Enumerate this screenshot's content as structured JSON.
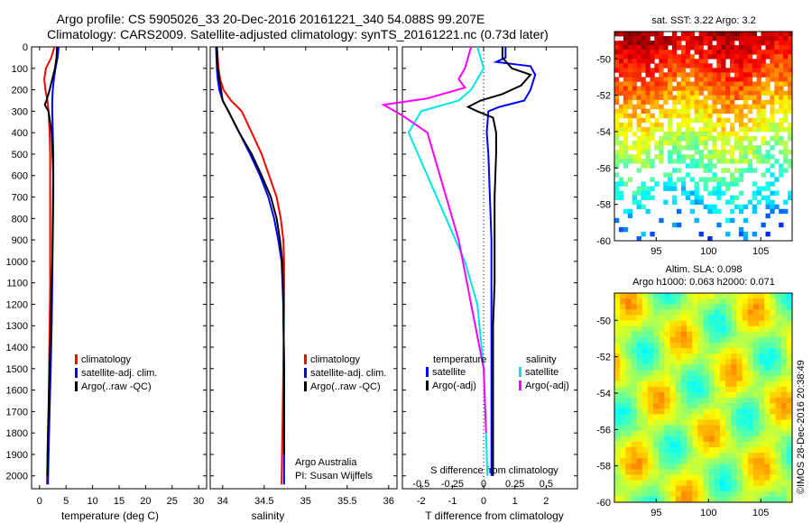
{
  "titles": {
    "line1": "Argo profile: CS 5905026_33 20-Dec-2016 20161221_340 54.088S 99.207E",
    "line2": "Climatology: CARS2009. Satellite-adjusted climatology: synTS_20161221.nc (0.73d later)"
  },
  "colors": {
    "climatology": "#ff0000",
    "satellite": "#0000ff",
    "argo": "#000000",
    "salinity_satellite": "#00e6e6",
    "salinity_argo": "#ff00ff"
  },
  "depth_ticks": [
    "0",
    "100",
    "200",
    "300",
    "400",
    "500",
    "600",
    "700",
    "800",
    "900",
    "1000",
    "1100",
    "1200",
    "1300",
    "1400",
    "1500",
    "1600",
    "1700",
    "1800",
    "1900",
    "2000"
  ],
  "chart_data": [
    {
      "id": "temperature",
      "type": "line",
      "xlabel": "temperature (deg C)",
      "ylabel": "",
      "xlim": [
        -1.5,
        31.5
      ],
      "ylim": [
        2060,
        0
      ],
      "xticks": [
        "0",
        "5",
        "10",
        "15",
        "20",
        "25",
        "30"
      ],
      "legend": [
        "climatology",
        "satellite-adj. clim.",
        "Argo(..raw -QC)"
      ],
      "series": [
        {
          "name": "climatology",
          "x": [
            2.8,
            2.2,
            1.2,
            0.9,
            1.1,
            1.5,
            1.7,
            1.9,
            2.0,
            2.0,
            2.0,
            2.0,
            1.9,
            1.8,
            1.7,
            1.5,
            1.4
          ],
          "y": [
            0,
            50,
            100,
            150,
            200,
            250,
            300,
            400,
            500,
            700,
            900,
            1100,
            1300,
            1500,
            1700,
            1900,
            2040
          ]
        },
        {
          "name": "satellite-adj. clim.",
          "x": [
            3.6,
            3.4,
            3.0,
            2.7,
            2.5,
            2.4,
            2.4,
            2.5,
            2.6,
            2.6,
            2.5,
            2.4,
            2.3,
            2.1,
            1.9,
            1.7,
            1.6
          ],
          "y": [
            0,
            50,
            100,
            150,
            200,
            250,
            300,
            400,
            500,
            700,
            900,
            1100,
            1300,
            1500,
            1700,
            1900,
            2040
          ]
        },
        {
          "name": "Argo(..raw -QC)",
          "x": [
            3.3,
            3.2,
            2.9,
            2.4,
            1.9,
            1.3,
            1.0,
            1.7,
            2.3,
            2.6,
            2.5,
            2.4,
            2.2,
            2.0,
            1.8,
            1.6,
            1.5
          ],
          "y": [
            0,
            50,
            100,
            150,
            200,
            250,
            270,
            300,
            400,
            600,
            800,
            1000,
            1200,
            1400,
            1600,
            1800,
            2000
          ]
        }
      ]
    },
    {
      "id": "salinity",
      "type": "line",
      "xlabel": "salinity",
      "ylabel": "",
      "xlim": [
        33.85,
        36.1
      ],
      "ylim": [
        2060,
        0
      ],
      "xticks": [
        "34",
        "34.5",
        "35",
        "35.5",
        "36"
      ],
      "legend": [
        "climatology",
        "satellite-adj. clim.",
        "Argo(..raw -QC)"
      ],
      "annotations": [
        "Argo Australia",
        "PI: Susan Wijffels"
      ],
      "series": [
        {
          "name": "climatology",
          "x": [
            33.93,
            33.95,
            33.97,
            34.01,
            34.1,
            34.23,
            34.35,
            34.47,
            34.56,
            34.65,
            34.7,
            34.73,
            34.74,
            34.74,
            34.73,
            34.72,
            34.71
          ],
          "y": [
            0,
            100,
            150,
            200,
            250,
            300,
            400,
            500,
            600,
            700,
            800,
            900,
            1000,
            1200,
            1500,
            1800,
            2040
          ]
        },
        {
          "name": "satellite-adj. clim.",
          "x": [
            33.92,
            33.93,
            33.94,
            33.96,
            34.0,
            34.07,
            34.2,
            34.33,
            34.45,
            34.55,
            34.62,
            34.67,
            34.71,
            34.73,
            34.74,
            34.74,
            34.74
          ],
          "y": [
            0,
            100,
            150,
            200,
            250,
            300,
            400,
            500,
            600,
            700,
            800,
            900,
            1000,
            1200,
            1500,
            1800,
            2040
          ]
        },
        {
          "name": "Argo(..raw -QC)",
          "x": [
            33.93,
            33.94,
            33.96,
            33.98,
            34.0,
            34.07,
            34.2,
            34.35,
            34.47,
            34.58,
            34.65,
            34.69,
            34.72,
            34.73,
            34.74,
            34.74
          ],
          "y": [
            0,
            100,
            150,
            200,
            250,
            300,
            400,
            500,
            600,
            700,
            800,
            900,
            1000,
            1200,
            1500,
            1900
          ]
        }
      ]
    },
    {
      "id": "difference",
      "type": "line",
      "xlabel": "T difference from climatology",
      "top_label": "S difference from climatology",
      "ylabel": "",
      "xlim": [
        -2.6,
        3.0
      ],
      "ylim": [
        2060,
        0
      ],
      "xticks": [
        "-2",
        "-1",
        "0",
        "1",
        "2"
      ],
      "s_xticks": [
        "-0.5",
        "-0.25",
        "0",
        "0.25",
        "0.5"
      ],
      "legend": [
        "temperature",
        "satellite",
        "Argo(-adj)",
        "salinity",
        "satellite",
        "Argo(-adj)"
      ],
      "series": [
        {
          "name": "satellite",
          "x": [
            0.7,
            0.7,
            0.4,
            1.5,
            1.65,
            1.5,
            1.3,
            0.5,
            0.15,
            0.1,
            0.15,
            0.2,
            0.25,
            0.25,
            0.25,
            0.25,
            0.25,
            0.25
          ],
          "y": [
            0,
            50,
            70,
            90,
            130,
            200,
            250,
            280,
            300,
            400,
            500,
            700,
            900,
            1100,
            1300,
            1500,
            1800,
            2000
          ]
        },
        {
          "name": "Argo(-adj)",
          "x": [
            0.6,
            0.6,
            0.9,
            1.5,
            1.2,
            0.6,
            -0.1,
            -0.5,
            -0.2,
            0.3,
            0.4,
            0.4,
            0.35,
            0.35,
            0.35,
            0.3,
            0.3,
            0.3,
            0.3
          ],
          "y": [
            0,
            50,
            100,
            130,
            180,
            220,
            250,
            280,
            300,
            330,
            400,
            500,
            700,
            900,
            1100,
            1300,
            1500,
            1800,
            2000
          ]
        },
        {
          "name": "satellite",
          "x": [
            -0.05,
            0.0,
            -0.05,
            -0.1,
            -0.2,
            -0.5,
            -0.6,
            -0.45,
            -0.3,
            -0.15,
            -0.05,
            0.0,
            0.02,
            0.03
          ],
          "y": [
            0,
            100,
            150,
            200,
            250,
            300,
            400,
            600,
            800,
            1000,
            1200,
            1500,
            1800,
            2000
          ]
        },
        {
          "name": "Argo(-adj)",
          "x": [
            -0.1,
            -0.15,
            -0.2,
            -0.15,
            -0.45,
            -0.8,
            -0.65,
            -0.45,
            -0.35,
            -0.2,
            -0.1,
            0.0,
            0.02
          ],
          "y": [
            0,
            100,
            150,
            190,
            240,
            270,
            320,
            400,
            600,
            900,
            1200,
            1500,
            1800
          ]
        }
      ]
    },
    {
      "id": "sst-map",
      "type": "heatmap",
      "title": "sat. SST: 3.22  Argo: 3.2",
      "xticks": [
        "95",
        "100",
        "105"
      ],
      "yticks": [
        "-50",
        "-52",
        "-54",
        "-56",
        "-58",
        "-60"
      ],
      "xlim": [
        91,
        108
      ],
      "ylim": [
        -60,
        -48.5
      ]
    },
    {
      "id": "sla-map",
      "type": "heatmap",
      "title": "Altim. SLA: 0.098",
      "subtitle": "Argo h1000: 0.063 h2000: 0.071",
      "xticks": [
        "95",
        "100",
        "105"
      ],
      "yticks": [
        "-50",
        "-52",
        "-54",
        "-56",
        "-58",
        "-60"
      ],
      "xlim": [
        91,
        108
      ],
      "ylim": [
        -60,
        -48.5
      ]
    }
  ],
  "watermark": "©IMOS 28-Dec-2016 20:38:49"
}
